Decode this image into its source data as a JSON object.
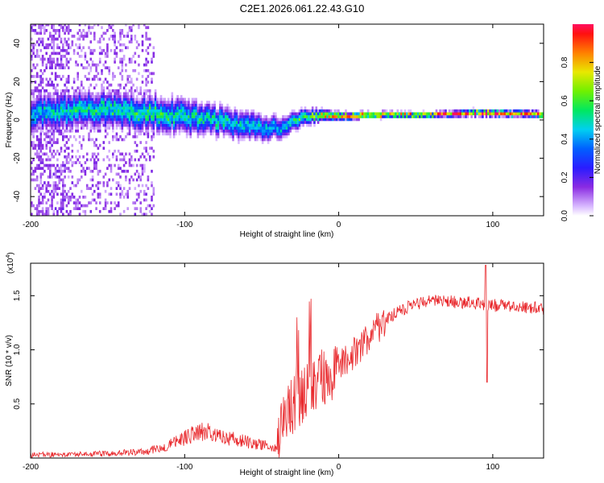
{
  "title": "C2E1.2026.061.22.43.G10",
  "colors": {
    "axis": "#000000",
    "snr_line": "#e8262a",
    "background": "#ffffff"
  },
  "chart_data": [
    {
      "type": "heatmap",
      "name": "spectrogram",
      "xlabel": "Height of straight line (km)",
      "ylabel": "Frequency (Hz)",
      "xlim": [
        -200,
        133
      ],
      "ylim": [
        -50,
        50
      ],
      "xticks": [
        -200,
        -100,
        0,
        100
      ],
      "yticks": [
        -40,
        -20,
        0,
        20,
        40
      ],
      "ridge": [
        {
          "x": -195,
          "freq": 3,
          "amp": 0.45,
          "spread": 6
        },
        {
          "x": -180,
          "freq": 4,
          "amp": 0.5,
          "spread": 6
        },
        {
          "x": -160,
          "freq": 5,
          "amp": 0.5,
          "spread": 6
        },
        {
          "x": -140,
          "freq": 4,
          "amp": 0.52,
          "spread": 6
        },
        {
          "x": -120,
          "freq": 3,
          "amp": 0.55,
          "spread": 6
        },
        {
          "x": -100,
          "freq": 1,
          "amp": 0.5,
          "spread": 6
        },
        {
          "x": -80,
          "freq": -1,
          "amp": 0.5,
          "spread": 5
        },
        {
          "x": -60,
          "freq": -4,
          "amp": 0.45,
          "spread": 5
        },
        {
          "x": -40,
          "freq": -5,
          "amp": 0.42,
          "spread": 4
        },
        {
          "x": -25,
          "freq": 0,
          "amp": 0.55,
          "spread": 3
        },
        {
          "x": -10,
          "freq": 2,
          "amp": 0.75,
          "spread": 2
        },
        {
          "x": 0,
          "freq": 1,
          "amp": 0.82,
          "spread": 1.5
        },
        {
          "x": 20,
          "freq": 2,
          "amp": 0.88,
          "spread": 1.2
        },
        {
          "x": 60,
          "freq": 2,
          "amp": 0.92,
          "spread": 1.0
        },
        {
          "x": 90,
          "freq": 3,
          "amp": 0.95,
          "spread": 1.2
        },
        {
          "x": 133,
          "freq": 2,
          "amp": 0.9,
          "spread": 1.2
        }
      ],
      "colorbar": {
        "label": "Normalized spectral amplitude",
        "range": [
          0,
          1
        ],
        "ticks": [
          "0.0",
          "0.2",
          "0.4",
          "0.6",
          "0.8"
        ],
        "tick_values": [
          0.0,
          0.2,
          0.4,
          0.6,
          0.8
        ]
      }
    },
    {
      "type": "line",
      "name": "snr",
      "xlabel": "Height of straight line (km)",
      "ylabel": "SNR (10 * v/v)",
      "yscale_label": "(x10",
      "yscale_exp": "4",
      "yscale_close": ")",
      "xlim": [
        -200,
        133
      ],
      "ylim": [
        0,
        1.8
      ],
      "xticks": [
        -200,
        -100,
        0,
        100
      ],
      "yticks": [
        "0.5",
        "1.0",
        "1.5"
      ],
      "ytick_values": [
        0.5,
        1.0,
        1.5
      ],
      "profile": [
        {
          "x": -200,
          "y": 0.03
        },
        {
          "x": -150,
          "y": 0.04
        },
        {
          "x": -125,
          "y": 0.06
        },
        {
          "x": -110,
          "y": 0.12
        },
        {
          "x": -95,
          "y": 0.22
        },
        {
          "x": -85,
          "y": 0.26
        },
        {
          "x": -70,
          "y": 0.18
        },
        {
          "x": -50,
          "y": 0.12
        },
        {
          "x": -40,
          "y": 0.1
        },
        {
          "x": -33,
          "y": 0.45
        },
        {
          "x": -25,
          "y": 0.55
        },
        {
          "x": -15,
          "y": 0.7
        },
        {
          "x": -5,
          "y": 0.78
        },
        {
          "x": 5,
          "y": 0.9
        },
        {
          "x": 15,
          "y": 1.05
        },
        {
          "x": 25,
          "y": 1.2
        },
        {
          "x": 35,
          "y": 1.32
        },
        {
          "x": 45,
          "y": 1.4
        },
        {
          "x": 60,
          "y": 1.45
        },
        {
          "x": 80,
          "y": 1.44
        },
        {
          "x": 95,
          "y": 1.42
        },
        {
          "x": 110,
          "y": 1.4
        },
        {
          "x": 133,
          "y": 1.38
        }
      ]
    }
  ]
}
